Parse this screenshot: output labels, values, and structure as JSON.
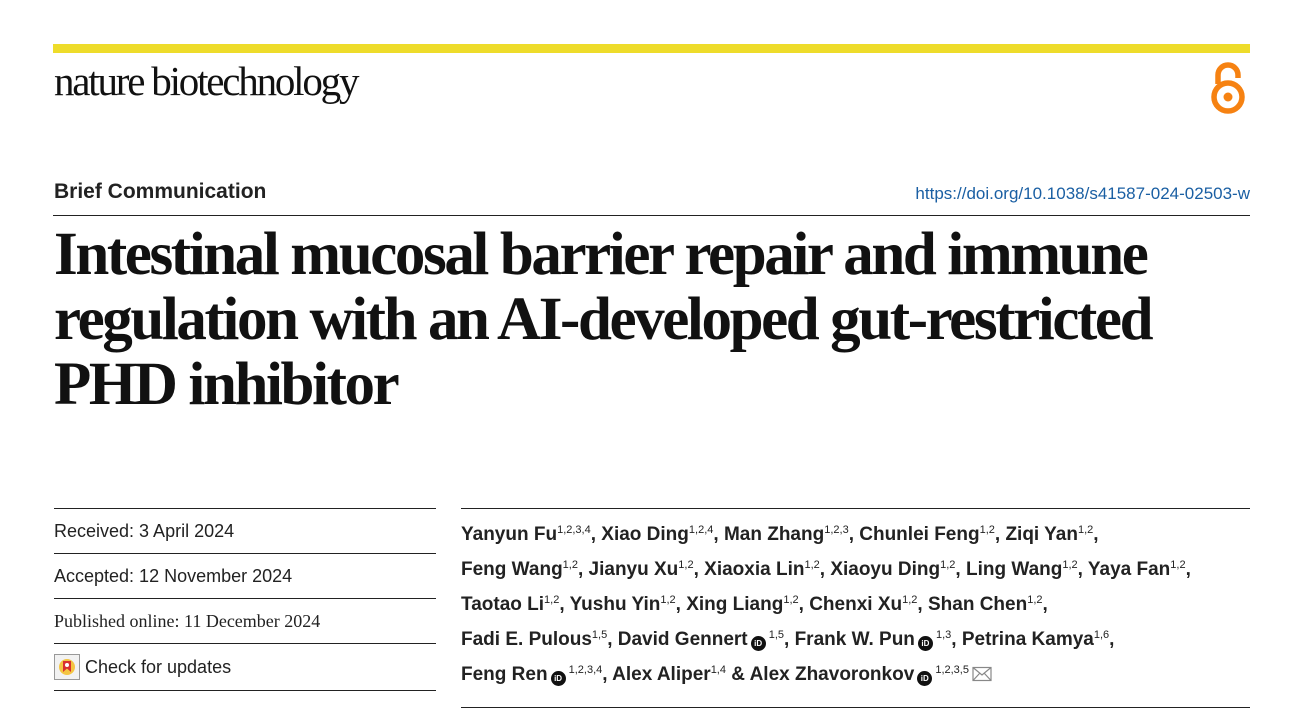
{
  "journal": {
    "name": "nature biotechnology",
    "accent_color": "#eedc2a",
    "open_access_icon": "open-access-icon",
    "open_access_color": "#f68212"
  },
  "article": {
    "type": "Brief Communication",
    "doi": "https://doi.org/10.1038/s41587-024-02503-w",
    "title": "Intestinal mucosal barrier repair and immune regulation with an AI-developed gut-restricted PHD inhibitor"
  },
  "meta": {
    "received": "Received: 3 April 2024",
    "accepted": "Accepted: 12 November 2024",
    "published": "Published online: 11 December 2024",
    "check_updates": "Check for updates"
  },
  "authors": [
    {
      "name": "Yanyun Fu",
      "aff": "1,2,3,4",
      "orcid": false,
      "sep": ", "
    },
    {
      "name": "Xiao Ding",
      "aff": "1,2,4",
      "orcid": false,
      "sep": ", "
    },
    {
      "name": "Man Zhang",
      "aff": "1,2,3",
      "orcid": false,
      "sep": ", "
    },
    {
      "name": "Chunlei Feng",
      "aff": "1,2",
      "orcid": false,
      "sep": ", "
    },
    {
      "name": "Ziqi Yan",
      "aff": "1,2",
      "orcid": false,
      "sep": ", "
    },
    {
      "name": "Feng Wang",
      "aff": "1,2",
      "orcid": false,
      "sep": ", "
    },
    {
      "name": "Jianyu Xu",
      "aff": "1,2",
      "orcid": false,
      "sep": ", "
    },
    {
      "name": "Xiaoxia Lin",
      "aff": "1,2",
      "orcid": false,
      "sep": ", "
    },
    {
      "name": "Xiaoyu Ding",
      "aff": "1,2",
      "orcid": false,
      "sep": ", "
    },
    {
      "name": "Ling Wang",
      "aff": "1,2",
      "orcid": false,
      "sep": ", "
    },
    {
      "name": "Yaya Fan",
      "aff": "1,2",
      "orcid": false,
      "sep": ", "
    },
    {
      "name": "Taotao Li",
      "aff": "1,2",
      "orcid": false,
      "sep": ", "
    },
    {
      "name": "Yushu Yin",
      "aff": "1,2",
      "orcid": false,
      "sep": ", "
    },
    {
      "name": "Xing Liang",
      "aff": "1,2",
      "orcid": false,
      "sep": ", "
    },
    {
      "name": "Chenxi Xu",
      "aff": "1,2",
      "orcid": false,
      "sep": ", "
    },
    {
      "name": "Shan Chen",
      "aff": "1,2",
      "orcid": false,
      "sep": ", "
    },
    {
      "name": "Fadi E. Pulous",
      "aff": "1,5",
      "orcid": false,
      "sep": ", "
    },
    {
      "name": "David Gennert",
      "aff": "1,5",
      "orcid": true,
      "sep": ", "
    },
    {
      "name": "Frank W. Pun",
      "aff": "1,3",
      "orcid": true,
      "sep": ", "
    },
    {
      "name": "Petrina Kamya",
      "aff": "1,6",
      "orcid": false,
      "sep": ", "
    },
    {
      "name": "Feng Ren",
      "aff": "1,2,3,4",
      "orcid": true,
      "sep": ", "
    },
    {
      "name": "Alex Aliper",
      "aff": "1,4",
      "orcid": false,
      "sep": " & "
    },
    {
      "name": "Alex Zhavoronkov",
      "aff": "1,2,3,5",
      "orcid": true,
      "sep": "",
      "corresponding": true
    }
  ],
  "author_lines": [
    [
      0,
      4
    ],
    [
      5,
      10
    ],
    [
      11,
      15
    ],
    [
      16,
      19
    ],
    [
      20,
      22
    ]
  ]
}
